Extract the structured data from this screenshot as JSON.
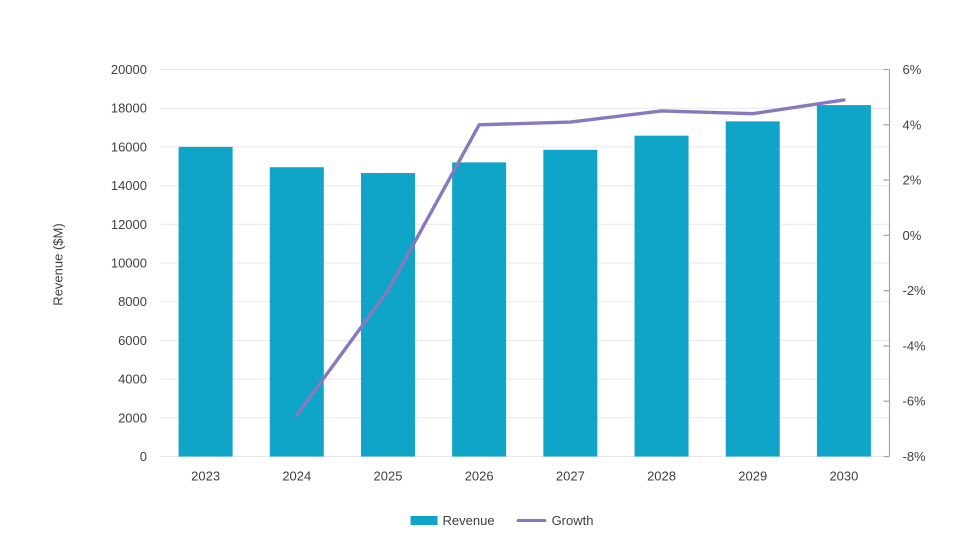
{
  "chart_data": {
    "type": "combo",
    "title": "",
    "categories": [
      "2023",
      "2024",
      "2025",
      "2026",
      "2027",
      "2028",
      "2029",
      "2030"
    ],
    "series": [
      {
        "name": "Revenue",
        "type": "bar",
        "axis": "left",
        "color": "#0ea5c9",
        "values": [
          16000,
          14950,
          14650,
          15200,
          15850,
          16580,
          17320,
          18160
        ]
      },
      {
        "name": "Growth",
        "type": "line",
        "axis": "right",
        "color": "#8878bd",
        "values": [
          null,
          -6.5,
          -2.0,
          4.0,
          4.1,
          4.5,
          4.4,
          4.9
        ]
      }
    ],
    "left_axis": {
      "label": "Revenue ($M)",
      "min": 0,
      "max": 20000,
      "step": 2000,
      "tick_labels": [
        "20000",
        "18000",
        "16000",
        "14000",
        "12000",
        "10000",
        "8000",
        "6000",
        "4000",
        "2000",
        "0"
      ]
    },
    "right_axis": {
      "label": "",
      "min": -8,
      "max": 6,
      "step": 2,
      "tick_labels": [
        "6%",
        "4%",
        "2%",
        "0%",
        "-2%",
        "-4%",
        "-6%",
        "-8%"
      ]
    },
    "legend": {
      "position": "bottom",
      "entries": [
        "Revenue",
        "Growth"
      ]
    },
    "grid": "horizontal",
    "style": {
      "gridline_color": "#e7e7e7",
      "axis_line_color": "#a6a6a6",
      "text_color": "#3f3f3f",
      "background_color": "#ffffff"
    }
  }
}
